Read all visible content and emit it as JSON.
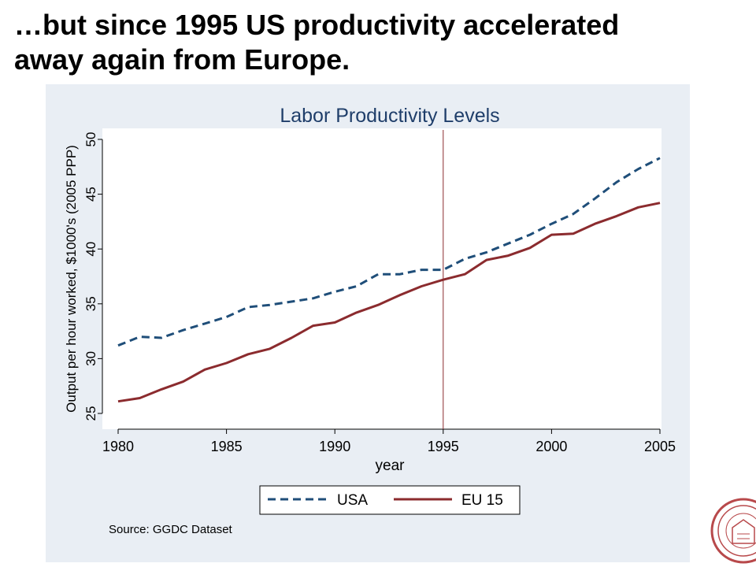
{
  "slide": {
    "title_line1": "…but since 1995 US productivity accelerated",
    "title_line2": "away again from Europe."
  },
  "chart_data": {
    "type": "line",
    "title": "Labor Productivity Levels",
    "xlabel": "year",
    "ylabel": "Output per hour worked, $1000's (2005 PPP)",
    "xlim": [
      1980,
      2005
    ],
    "ylim": [
      25,
      50
    ],
    "x_ticks": [
      1980,
      1985,
      1990,
      1995,
      2000,
      2005
    ],
    "y_ticks": [
      25,
      30,
      35,
      40,
      45,
      50
    ],
    "x_tick_labels": [
      "1980",
      "1985",
      "1990",
      "1995",
      "2000",
      "2005"
    ],
    "y_tick_labels": [
      "25",
      "30",
      "35",
      "40",
      "45",
      "50"
    ],
    "vertical_reference_line": 1995,
    "grid": false,
    "legend_position": "bottom",
    "x": [
      1980,
      1981,
      1982,
      1983,
      1984,
      1985,
      1986,
      1987,
      1988,
      1989,
      1990,
      1991,
      1992,
      1993,
      1994,
      1995,
      1996,
      1997,
      1998,
      1999,
      2000,
      2001,
      2002,
      2003,
      2004,
      2005
    ],
    "series": [
      {
        "name": "USA",
        "color": "#1f4e79",
        "style": "dashed",
        "values": [
          31.2,
          32.0,
          31.9,
          32.6,
          33.2,
          33.8,
          34.7,
          34.9,
          35.2,
          35.5,
          36.1,
          36.6,
          37.7,
          37.7,
          38.1,
          38.1,
          39.1,
          39.7,
          40.5,
          41.3,
          42.3,
          43.2,
          44.6,
          46.1,
          47.3,
          48.3
        ]
      },
      {
        "name": "EU 15",
        "color": "#8b2b2e",
        "style": "solid",
        "values": [
          26.1,
          26.4,
          27.2,
          27.9,
          29.0,
          29.6,
          30.4,
          30.9,
          31.9,
          33.0,
          33.3,
          34.2,
          34.9,
          35.8,
          36.6,
          37.2,
          37.7,
          39.0,
          39.4,
          40.1,
          41.3,
          41.4,
          42.3,
          43.0,
          43.8,
          44.2
        ]
      }
    ],
    "source": "Source: GGDC Dataset"
  }
}
